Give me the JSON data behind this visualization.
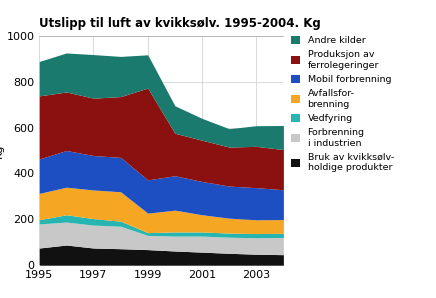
{
  "title": "Utslipp til luft av kvikksølv. 1995-2004. Kg",
  "ylabel": "Kg",
  "years": [
    1995,
    1996,
    1997,
    1998,
    1999,
    2000,
    2001,
    2002,
    2003,
    2004
  ],
  "series": {
    "Bruk av kvikksølv-\nholdige produkter": [
      75,
      88,
      75,
      72,
      68,
      62,
      57,
      52,
      48,
      46
    ],
    "Forbrenning\ni industrien": [
      105,
      100,
      100,
      98,
      62,
      65,
      70,
      70,
      72,
      75
    ],
    "Vedfyring": [
      18,
      32,
      28,
      22,
      12,
      18,
      18,
      18,
      18,
      18
    ],
    "Avfallsfor-\nbrenning": [
      115,
      120,
      125,
      128,
      85,
      95,
      75,
      65,
      60,
      60
    ],
    "Mobil forbrenning": [
      150,
      160,
      150,
      150,
      145,
      150,
      145,
      140,
      140,
      130
    ],
    "Produksjon av\nferrolegeringer": [
      275,
      255,
      250,
      265,
      400,
      185,
      180,
      170,
      180,
      175
    ],
    "Andre kilder": [
      150,
      170,
      190,
      175,
      145,
      120,
      95,
      80,
      90,
      105
    ]
  },
  "colors": {
    "Bruk av kvikksølv-\nholdige produkter": "#111111",
    "Forbrenning\ni industrien": "#c8c8c8",
    "Vedfyring": "#26b5b0",
    "Avfallsfor-\nbrenning": "#f5a623",
    "Mobil forbrenning": "#1e4fc2",
    "Produksjon av\nferrolegeringer": "#8b1010",
    "Andre kilder": "#1a7a6e"
  },
  "legend_labels": [
    "Andre kilder",
    "Produksjon av\nferrolegeringer",
    "Mobil forbrenning",
    "Avfallsfor-\nbrenning",
    "Vedfyring",
    "Forbrenning\ni industrien",
    "Bruk av kvikksølv-\nholdige produkter"
  ],
  "ylim": [
    0,
    1000
  ],
  "xlim": [
    1995,
    2004
  ],
  "xticks": [
    1995,
    1997,
    1999,
    2001,
    2003
  ],
  "yticks": [
    0,
    200,
    400,
    600,
    800,
    1000
  ],
  "bg_color": "#ffffff",
  "grid_color": "#cccccc"
}
